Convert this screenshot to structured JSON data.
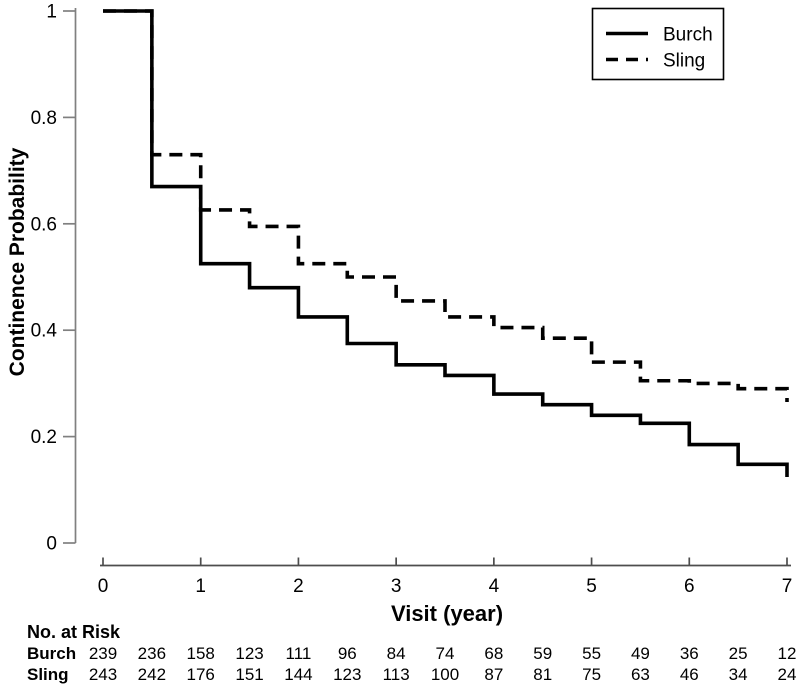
{
  "chart_data": {
    "type": "line",
    "subtype": "kaplan-meier-step",
    "title": "",
    "xlabel": "Visit (year)",
    "ylabel": "Continence Probability",
    "xlim": [
      0,
      7
    ],
    "ylim": [
      0,
      1
    ],
    "x_ticks": [
      {
        "value": 0,
        "label": "0"
      },
      {
        "value": 1,
        "label": "1"
      },
      {
        "value": 2,
        "label": "2"
      },
      {
        "value": 3,
        "label": "3"
      },
      {
        "value": 4,
        "label": "4"
      },
      {
        "value": 5,
        "label": "5"
      },
      {
        "value": 6,
        "label": "6"
      },
      {
        "value": 7,
        "label": "7"
      }
    ],
    "y_ticks": [
      {
        "value": 0,
        "label": "0"
      },
      {
        "value": 0.2,
        "label": "0.2"
      },
      {
        "value": 0.4,
        "label": "0.4"
      },
      {
        "value": 0.6,
        "label": "0.6"
      },
      {
        "value": 0.8,
        "label": "0.8"
      },
      {
        "value": 1,
        "label": "1"
      }
    ],
    "grid": false,
    "step_interval_starts": [
      0,
      0.5,
      1,
      1.5,
      2,
      2.5,
      3,
      3.5,
      4,
      4.5,
      5,
      5.5,
      6,
      6.5
    ],
    "series": [
      {
        "name": "Burch",
        "line_style": "solid",
        "levels": [
          1.0,
          0.67,
          0.525,
          0.48,
          0.425,
          0.375,
          0.335,
          0.315,
          0.28,
          0.26,
          0.24,
          0.225,
          0.185,
          0.148
        ],
        "end_x": 7,
        "end_value": 0.124
      },
      {
        "name": "Sling",
        "line_style": "dashed",
        "levels": [
          1.0,
          0.73,
          0.626,
          0.595,
          0.525,
          0.5,
          0.455,
          0.425,
          0.405,
          0.385,
          0.34,
          0.305,
          0.3,
          0.29
        ],
        "end_x": 7,
        "end_value": 0.265
      }
    ],
    "legend": {
      "position": "top-right",
      "entries": [
        {
          "label": "Burch",
          "line_style": "solid"
        },
        {
          "label": "Sling",
          "line_style": "dashed"
        }
      ]
    },
    "risk_table": {
      "title": "No. at Risk",
      "visits": [
        0,
        0.5,
        1,
        1.5,
        2,
        2.5,
        3,
        3.5,
        4,
        4.5,
        5,
        5.5,
        6,
        6.5,
        7
      ],
      "rows": [
        {
          "label": "Burch",
          "counts": [
            239,
            236,
            158,
            123,
            111,
            96,
            84,
            74,
            68,
            59,
            55,
            49,
            36,
            25,
            12
          ]
        },
        {
          "label": "Sling",
          "counts": [
            243,
            242,
            176,
            151,
            144,
            123,
            113,
            100,
            87,
            81,
            75,
            63,
            46,
            34,
            24
          ]
        }
      ]
    },
    "colors": {
      "curve": "#000000",
      "y_axis": "#808080",
      "x_axis": "#4d4d4d",
      "text": "#000000",
      "background": "#ffffff"
    }
  }
}
